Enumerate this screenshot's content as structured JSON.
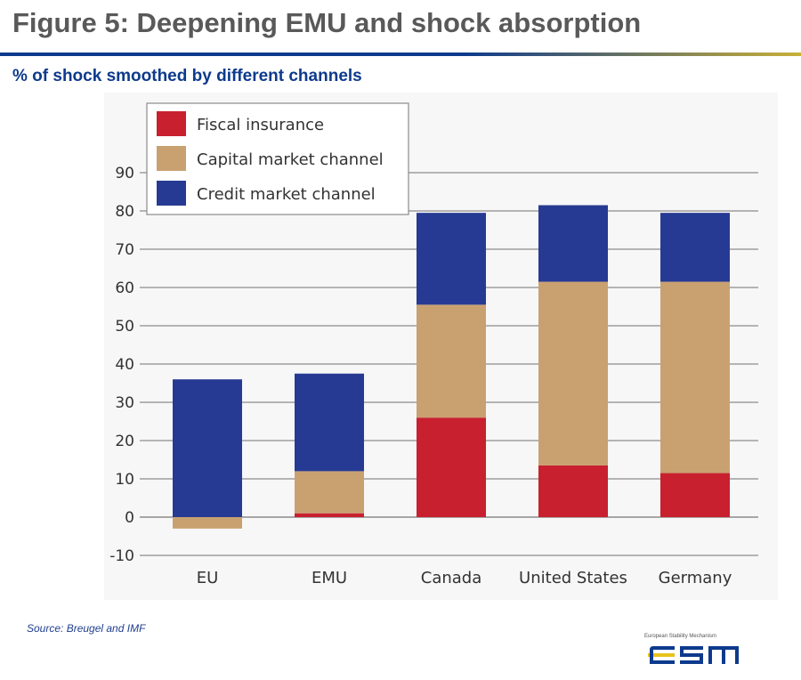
{
  "header": {
    "title": "Figure 5: Deepening EMU and shock absorption",
    "subtitle": "% of shock smoothed by different channels"
  },
  "footer": {
    "source": "Source: Breugel and IMF",
    "logo_caption": "European Stability Mechanism",
    "logo_text": "esm"
  },
  "colors": {
    "title": "#595959",
    "subtitle": "#0d3a8c",
    "fiscal": "#c8202f",
    "capital": "#c9a171",
    "credit": "#273a93",
    "grid": "#8c8c8c",
    "logo_primary": "#0d3a8c",
    "logo_accent": "#e8c21c"
  },
  "chart_data": {
    "type": "bar",
    "stacked": true,
    "categories": [
      "EU",
      "EMU",
      "Canada",
      "United States",
      "Germany"
    ],
    "series": [
      {
        "name": "Fiscal insurance",
        "color": "#c8202f",
        "values": [
          0,
          1,
          26,
          13.5,
          11.5
        ]
      },
      {
        "name": "Capital market channel",
        "color": "#c9a171",
        "values": [
          -3,
          11,
          29.5,
          48,
          50
        ]
      },
      {
        "name": "Credit market channel",
        "color": "#273a93",
        "values": [
          36,
          25.5,
          24,
          20,
          18
        ]
      }
    ],
    "ylim": [
      -10,
      90
    ],
    "yticks": [
      -10,
      0,
      10,
      20,
      30,
      40,
      50,
      60,
      70,
      80,
      90
    ],
    "xlabel": "",
    "ylabel": "",
    "grid": true,
    "legend": "top-left"
  }
}
